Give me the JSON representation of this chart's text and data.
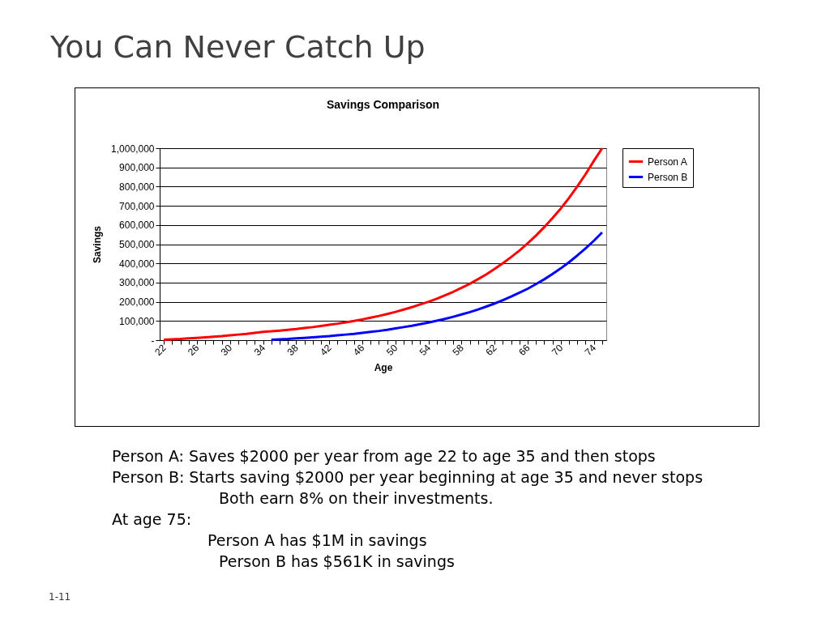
{
  "chart_data": {
    "type": "line",
    "title": "You Can Never Catch Up",
    "subtitle": "Savings Comparison",
    "xlabel": "Age",
    "ylabel": "Savings",
    "categories": [
      "22",
      null,
      null,
      null,
      "26",
      null,
      null,
      null,
      "30",
      null,
      null,
      null,
      "34",
      null,
      null,
      null,
      "38",
      null,
      null,
      null,
      "42",
      null,
      null,
      null,
      "46",
      null,
      null,
      null,
      "50",
      null,
      null,
      null,
      "54",
      null,
      null,
      null,
      "58",
      null,
      null,
      null,
      "62",
      null,
      null,
      null,
      "66",
      null,
      null,
      null,
      "70",
      null,
      null,
      null,
      "74",
      null
    ],
    "series": [
      {
        "name": "Person A",
        "color": "#ff0000",
        "values": [
          2000,
          4000,
          6000,
          9000,
          12000,
          15000,
          18000,
          21000,
          25000,
          29000,
          33000,
          38000,
          43000,
          46000,
          50000,
          54000,
          58000,
          63000,
          68000,
          74000,
          80000,
          86000,
          93000,
          100000,
          108000,
          117000,
          126000,
          136000,
          147000,
          159000,
          172000,
          186000,
          200000,
          216000,
          234000,
          252000,
          273000,
          294000,
          318000,
          343000,
          371000,
          401000,
          433000,
          467000,
          505000,
          545000,
          589000,
          636000,
          686000,
          741000,
          801000,
          865000,
          934000,
          1000000
        ]
      },
      {
        "name": "Person B",
        "color": "#0000ff",
        "values": [
          null,
          null,
          null,
          null,
          null,
          null,
          null,
          null,
          null,
          null,
          null,
          null,
          null,
          2000,
          4000,
          6000,
          9000,
          12000,
          15000,
          18000,
          21000,
          25000,
          29000,
          33000,
          38000,
          43000,
          48000,
          54000,
          61000,
          68000,
          75000,
          83000,
          92000,
          101000,
          111000,
          122000,
          134000,
          146000,
          160000,
          175000,
          191000,
          208000,
          227000,
          247000,
          268000,
          292000,
          317000,
          345000,
          374000,
          406000,
          441000,
          478000,
          518000,
          561000
        ]
      }
    ],
    "ylim": [
      0,
      1000000
    ],
    "yticks": [
      {
        "value": 0,
        "label": "-"
      },
      {
        "value": 100000,
        "label": "100,000"
      },
      {
        "value": 200000,
        "label": "200,000"
      },
      {
        "value": 300000,
        "label": "300,000"
      },
      {
        "value": 400000,
        "label": "400,000"
      },
      {
        "value": 500000,
        "label": "500,000"
      },
      {
        "value": 600000,
        "label": "600,000"
      },
      {
        "value": 700000,
        "label": "700,000"
      },
      {
        "value": 800000,
        "label": "800,000"
      },
      {
        "value": 900000,
        "label": "900,000"
      },
      {
        "value": 1000000,
        "label": "1,000,000"
      }
    ],
    "grid": "y",
    "legend": "right",
    "marker": "none",
    "line_style": "solid",
    "annotations": [
      "Person A: Saves $2000 per year from age 22 to age 35 and then stops",
      "Person B: Starts saving $2000 per year beginning at age 35 and never stops",
      "Both earn 8% on their investments.",
      "At age 75:",
      "Person A has $1M in savings",
      "Person B has $561K in savings",
      "1-11"
    ]
  }
}
